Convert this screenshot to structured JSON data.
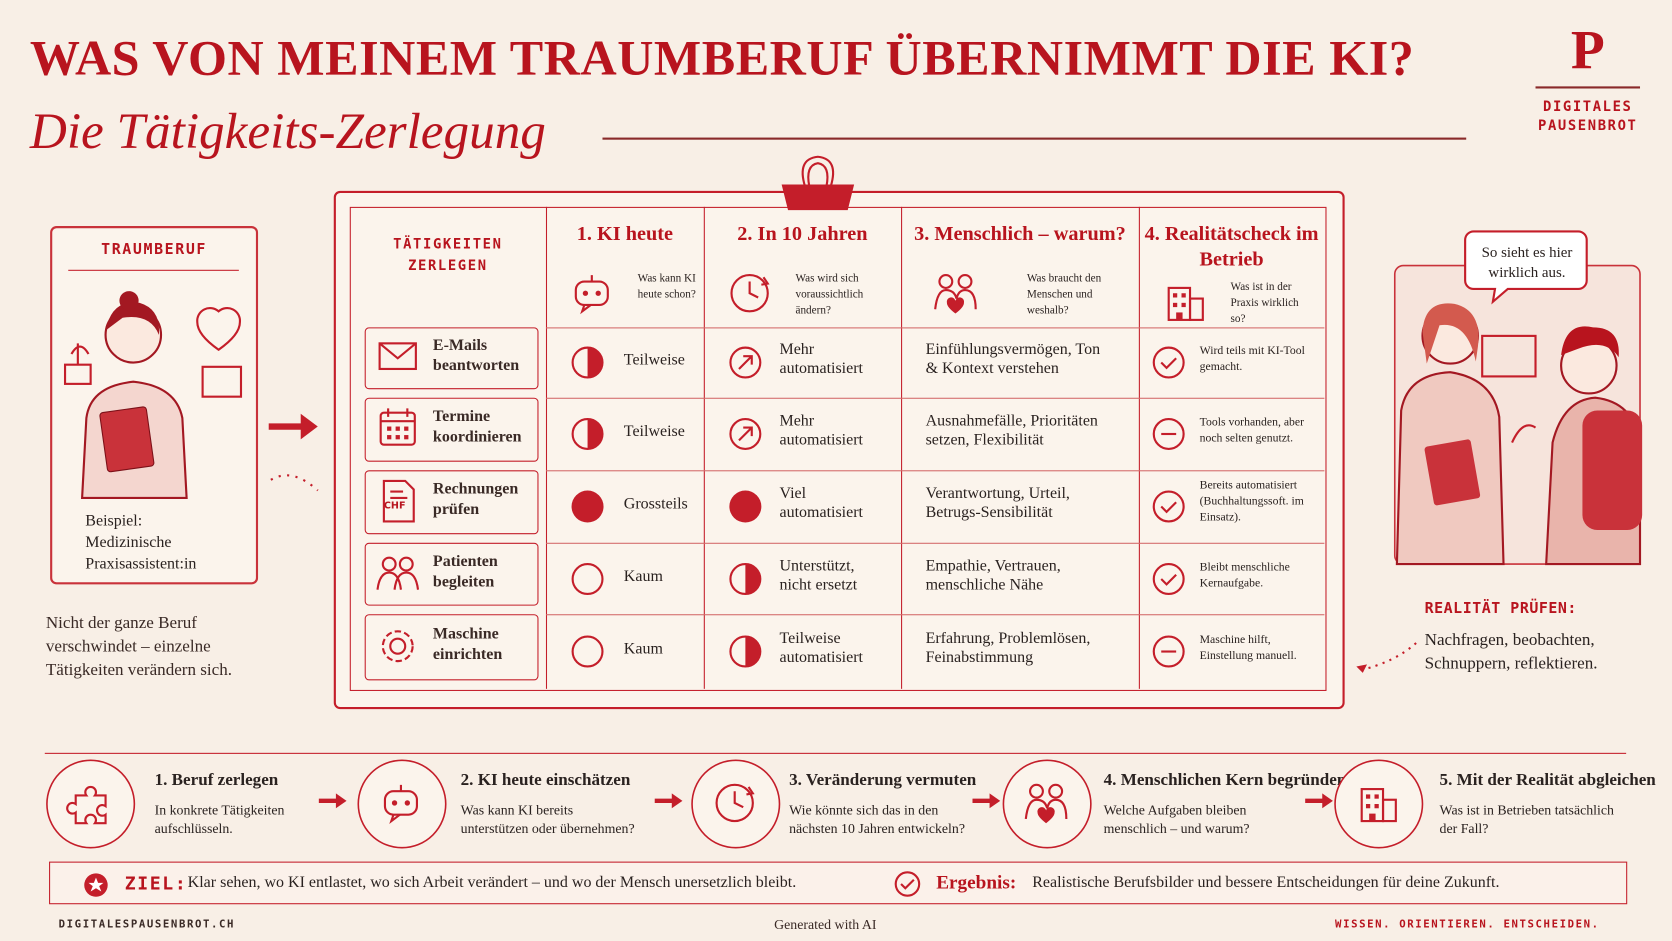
{
  "header": {
    "title": "WAS VON MEINEM TRAUMBERUF ÜBERNIMMT DIE KI?",
    "subtitle": "Die Tätigkeits-Zerlegung",
    "brand_letter": "P",
    "brand_lines": [
      "DIGITALES",
      "PAUSENBROT"
    ]
  },
  "profile": {
    "label": "TRAUMBERUF",
    "example": [
      "Beispiel:",
      "Medizinische",
      "Praxisassistent:in"
    ],
    "note": "Nicht der ganze Beruf verschwindet – einzelne Tätigkeiten verändern sich."
  },
  "table": {
    "corner": [
      "TÄTIGKEITEN",
      "ZERLEGEN"
    ],
    "columns": [
      {
        "title": "1. KI heute",
        "question": "Was kann KI heute schon?"
      },
      {
        "title": "2. In 10 Jahren",
        "question": "Was wird sich voraussichtlich ändern?"
      },
      {
        "title": "3. Menschlich – warum?",
        "question": "Was braucht den Menschen und weshalb?"
      },
      {
        "title": "4. Realitätscheck im Betrieb",
        "question": "Was ist in der Praxis wirklich so?"
      }
    ],
    "rows": [
      {
        "task": "E-Mails beantworten",
        "ki_today": "Teilweise",
        "in_10_years": "Mehr automatisiert",
        "human": "Einfühlungsvermögen, Ton & Kontext verstehen",
        "reality": "Wird teils mit KI-Tool gemacht."
      },
      {
        "task": "Termine koordinieren",
        "ki_today": "Teilweise",
        "in_10_years": "Mehr automatisiert",
        "human": "Ausnahmefälle, Prioritäten setzen, Flexibilität",
        "reality": "Tools vorhanden, aber noch selten genutzt."
      },
      {
        "task": "Rechnungen prüfen",
        "icon_label": "CHF",
        "ki_today": "Grossteils",
        "in_10_years": "Viel automatisiert",
        "human": "Verantwortung, Urteil, Betrugs-Sensibilität",
        "reality": "Bereits automatisiert (Buchhaltungssoft. im Einsatz)."
      },
      {
        "task": "Patienten begleiten",
        "ki_today": "Kaum",
        "in_10_years": "Unterstützt, nicht ersetzt",
        "human": "Empathie, Vertrauen, menschliche Nähe",
        "reality": "Bleibt menschliche Kernaufgabe."
      },
      {
        "task": "Maschine einrichten",
        "ki_today": "Kaum",
        "in_10_years": "Teilweise automatisiert",
        "human": "Erfahrung, Problemlösen, Feinabstimmung",
        "reality": "Maschine hilft, Einstellung manuell."
      }
    ]
  },
  "reality": {
    "bubble": "So sieht es hier wirklich aus.",
    "title": "REALITÄT PRÜFEN:",
    "text": "Nachfragen, beobachten, Schnuppern, reflektieren."
  },
  "steps": [
    {
      "title": "1. Beruf zerlegen",
      "text": "In konkrete Tätigkeiten aufschlüsseln."
    },
    {
      "title": "2. KI heute einschätzen",
      "text": "Was kann KI bereits unterstützen oder übernehmen?"
    },
    {
      "title": "3. Veränderung vermuten",
      "text": "Wie könnte sich das in den nächsten 10 Jahren entwickeln?"
    },
    {
      "title": "4. Menschlichen Kern begründen",
      "text": "Welche Aufgaben bleiben menschlich – und warum?"
    },
    {
      "title": "5. Mit der Realität abgleichen",
      "text": "Was ist in Betrieben tatsächlich der Fall?"
    }
  ],
  "summary": {
    "goal_label": "ZIEL:",
    "goal": "Klar sehen, wo KI entlastet, wo sich Arbeit verändert – und wo der Mensch unersetzlich bleibt.",
    "result_label": "Ergebnis:",
    "result": "Realistische Berufsbilder und bessere Entscheidungen für deine Zukunft."
  },
  "footer": {
    "site": "DIGITALESPAUSENBROT.CH",
    "note": "Generated with AI",
    "motto": "WISSEN. ORIENTIEREN. ENTSCHEIDEN."
  }
}
